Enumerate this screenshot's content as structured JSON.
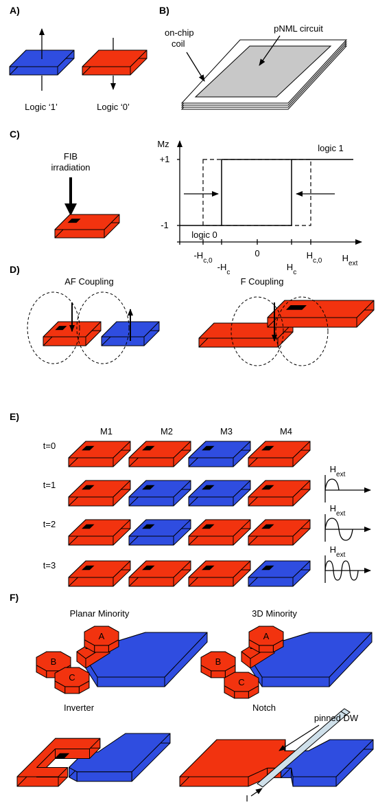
{
  "panel_a": {
    "label": "A)",
    "logic_1": "Logic ‘1’",
    "logic_0": "Logic ‘0’"
  },
  "panel_b": {
    "label": "B)",
    "coil": [
      "on-chip",
      "coil"
    ],
    "circuit": "pNML circuit"
  },
  "panel_c": {
    "label": "C)",
    "fib": [
      "FIB",
      "irradiation"
    ],
    "y_axis": "Mz",
    "plus_one": "+1",
    "minus_one": "-1",
    "logic_1": "logic 1",
    "logic_0": "logic 0",
    "x_labels": [
      {
        "text": "-H",
        "sub": "c,0"
      },
      {
        "text": "-H",
        "sub": "c"
      },
      {
        "text": "0"
      },
      {
        "text": "H",
        "sub": "c"
      },
      {
        "text": "H",
        "sub": "c,0"
      }
    ],
    "x_axis": {
      "text": "H",
      "sub": "ext"
    }
  },
  "panel_d": {
    "label": "D)",
    "af": "AF Coupling",
    "f": "F Coupling"
  },
  "panel_e": {
    "label": "E)",
    "columns": [
      "M1",
      "M2",
      "M3",
      "M4"
    ],
    "rows": [
      "t=0",
      "t=1",
      "t=2",
      "t=3"
    ],
    "field_labels": [
      {
        "text": "H",
        "sub": "ext"
      },
      {
        "text": "H",
        "sub": "ext"
      },
      {
        "text": "H",
        "sub": "ext"
      }
    ]
  },
  "panel_f": {
    "label": "F)",
    "planar": {
      "title": "Planar Minority",
      "inputs": [
        "A",
        "B",
        "C"
      ]
    },
    "three_d": {
      "title": "3D Minority",
      "inputs": [
        "A",
        "B",
        "C"
      ]
    },
    "inverter": "Inverter",
    "notch": "Notch",
    "pinned_dw": "pinned DW",
    "current": "I"
  }
}
